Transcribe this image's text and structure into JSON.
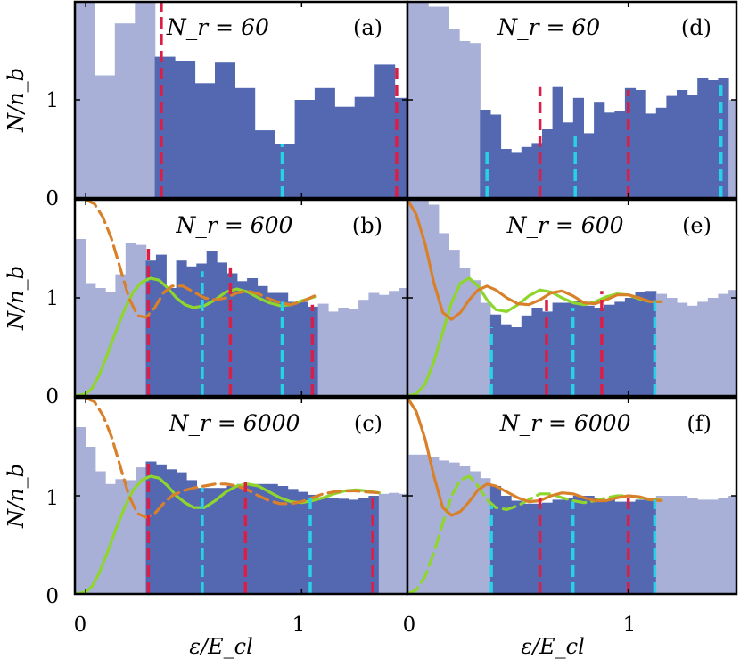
{
  "figure": {
    "ylabel": "N/n_b",
    "xlabel": "ε/E_cl",
    "x_ticks": [
      "0",
      "1",
      "0",
      "1"
    ],
    "y_ticks": {
      "top": [
        "0",
        "1"
      ],
      "mid": [
        "0",
        "1"
      ],
      "bot": [
        "0",
        "1"
      ]
    },
    "panel_titles": [
      "N_r = 60",
      "N_r = 600",
      "N_r = 6000",
      "N_r = 60",
      "N_r = 600",
      "N_r = 6000"
    ],
    "panel_labels": [
      "(a)",
      "(b)",
      "(c)",
      "(d)",
      "(e)",
      "(f)"
    ]
  },
  "colors": {
    "hist_light": "#a9b0d8",
    "hist_dark": "#5468b2",
    "red": "#dc1e46",
    "cyan": "#28d2e6",
    "green": "#8ed62c",
    "orange": "#d8812a"
  },
  "chart_data": [
    {
      "type": "bar",
      "panel": "a",
      "title": "N_r = 60",
      "label": "(a)",
      "xlim": [
        -0.05,
        1.49
      ],
      "ylim": [
        0,
        2.0
      ],
      "bin_width": 0.0925,
      "bin_left_edges": [
        -0.05,
        0.043,
        0.135,
        0.228,
        0.32,
        0.413,
        0.505,
        0.598,
        0.69,
        0.783,
        0.875,
        0.968,
        1.06,
        1.153,
        1.245,
        1.338,
        1.43
      ],
      "values": [
        2.1,
        1.25,
        1.78,
        2.1,
        1.44,
        1.4,
        1.17,
        1.38,
        1.12,
        0.69,
        0.55,
        1.0,
        1.12,
        0.93,
        1.03,
        1.36,
        1.02
      ],
      "highlight_range": [
        0.29,
        1.49
      ],
      "red_lines": [
        {
          "x": 0.35,
          "y": 2.0
        },
        {
          "x": 1.44,
          "y": 1.36
        }
      ],
      "cyan_lines": [
        {
          "x": 0.91,
          "y": 0.55
        }
      ]
    },
    {
      "type": "bar",
      "panel": "b",
      "title": "N_r = 600",
      "label": "(b)",
      "xlim": [
        -0.05,
        1.49
      ],
      "ylim": [
        0,
        2.0
      ],
      "bin_width": 0.0469,
      "values": [
        1.6,
        1.15,
        1.1,
        1.06,
        1.24,
        1.56,
        1.54,
        1.38,
        1.44,
        1.1,
        1.38,
        1.32,
        1.35,
        1.48,
        1.36,
        1.25,
        1.17,
        1.2,
        1.12,
        1.05,
        1.05,
        0.96,
        0.96,
        0.91,
        0.94,
        0.86,
        0.9,
        0.89,
        0.98,
        1.05,
        1.03,
        1.07,
        1.1,
        1.13,
        1.12,
        1.1,
        1.09,
        1.1
      ],
      "highlight_range": [
        0.29,
        1.06
      ],
      "red_lines": [
        {
          "x": 0.29,
          "y": 1.56
        },
        {
          "x": 0.67,
          "y": 1.31
        },
        {
          "x": 1.05,
          "y": 0.93
        }
      ],
      "cyan_lines": [
        {
          "x": 0.54,
          "y": 1.27
        },
        {
          "x": 0.91,
          "y": 0.96
        }
      ],
      "series": [
        {
          "x": [
            -0.05,
            0.0,
            0.03,
            0.06,
            0.1,
            0.14,
            0.18,
            0.22,
            0.26,
            0.3,
            0.34,
            0.38,
            0.42,
            0.46,
            0.5,
            0.55,
            0.6,
            0.65,
            0.7,
            0.75,
            0.8,
            0.85,
            0.9,
            0.95,
            1.0,
            1.06
          ],
          "y": [
            0,
            0.02,
            0.08,
            0.2,
            0.42,
            0.66,
            0.88,
            1.06,
            1.16,
            1.2,
            1.18,
            1.1,
            1.0,
            0.93,
            0.9,
            0.92,
            0.98,
            1.06,
            1.09,
            1.06,
            1.0,
            0.95,
            0.92,
            0.93,
            0.97,
            1.01
          ]
        },
        {
          "x": [
            0.0,
            0.04,
            0.08,
            0.12,
            0.16,
            0.2,
            0.24,
            0.28,
            0.32,
            0.36,
            0.4,
            0.45,
            0.5,
            0.55,
            0.6,
            0.65,
            0.7,
            0.75,
            0.8,
            0.85,
            0.9,
            0.95,
            1.0,
            1.06
          ],
          "y": [
            2.0,
            1.96,
            1.82,
            1.6,
            1.3,
            1.0,
            0.82,
            0.8,
            0.9,
            1.05,
            1.12,
            1.12,
            1.06,
            1.0,
            0.98,
            1.0,
            1.05,
            1.07,
            1.04,
            0.99,
            0.95,
            0.93,
            0.96,
            1.02
          ],
          "dashed": true
        }
      ]
    },
    {
      "type": "bar",
      "panel": "c",
      "title": "N_r = 6000",
      "label": "(c)",
      "xlim": [
        -0.05,
        1.49
      ],
      "ylim": [
        0,
        2.0
      ],
      "bin_width": 0.0469,
      "values": [
        1.7,
        1.5,
        1.25,
        1.12,
        1.17,
        1.16,
        1.29,
        1.35,
        1.32,
        1.27,
        1.24,
        1.16,
        1.08,
        1.08,
        1.08,
        1.1,
        1.12,
        1.12,
        1.12,
        1.12,
        1.1,
        1.07,
        1.04,
        1.01,
        0.98,
        0.98,
        0.97,
        0.96,
        0.98,
        1.0,
        1.02,
        1.03,
        1.02,
        1.0,
        0.99,
        1.0,
        1.0,
        0.99
      ],
      "highlight_range": [
        0.29,
        1.34
      ],
      "red_lines": [
        {
          "x": 0.29,
          "y": 1.38
        },
        {
          "x": 0.74,
          "y": 1.14
        },
        {
          "x": 1.33,
          "y": 1.03
        }
      ],
      "cyan_lines": [
        {
          "x": 0.54,
          "y": 1.08
        },
        {
          "x": 1.04,
          "y": 0.98
        }
      ],
      "series": [
        {
          "x": [
            -0.05,
            0.0,
            0.03,
            0.06,
            0.1,
            0.14,
            0.18,
            0.22,
            0.26,
            0.3,
            0.34,
            0.38,
            0.42,
            0.46,
            0.5,
            0.55,
            0.6,
            0.65,
            0.7,
            0.75,
            0.8,
            0.85,
            0.9,
            0.95,
            1.0,
            1.05,
            1.1,
            1.15,
            1.2,
            1.25,
            1.3,
            1.36
          ],
          "y": [
            0,
            0.02,
            0.08,
            0.2,
            0.42,
            0.66,
            0.88,
            1.06,
            1.16,
            1.2,
            1.18,
            1.1,
            1.0,
            0.93,
            0.88,
            0.88,
            0.95,
            1.04,
            1.1,
            1.12,
            1.1,
            1.04,
            0.98,
            0.94,
            0.93,
            0.95,
            0.98,
            1.02,
            1.05,
            1.06,
            1.05,
            1.03
          ]
        },
        {
          "x": [
            0.0,
            0.04,
            0.08,
            0.12,
            0.16,
            0.2,
            0.24,
            0.28,
            0.32,
            0.36,
            0.4,
            0.45,
            0.5,
            0.55,
            0.6,
            0.65,
            0.7,
            0.75,
            0.8,
            0.85,
            0.9,
            0.95,
            1.0,
            1.05,
            1.1,
            1.15,
            1.2,
            1.25,
            1.3,
            1.36
          ],
          "y": [
            2.0,
            1.96,
            1.82,
            1.6,
            1.3,
            1.0,
            0.82,
            0.78,
            0.82,
            0.92,
            1.0,
            1.05,
            1.08,
            1.1,
            1.12,
            1.12,
            1.1,
            1.06,
            1.0,
            0.95,
            0.92,
            0.92,
            0.94,
            0.98,
            1.02,
            1.04,
            1.05,
            1.05,
            1.04,
            1.03
          ],
          "dashed": true
        }
      ]
    },
    {
      "type": "bar",
      "panel": "d",
      "title": "N_r = 60",
      "label": "(d)",
      "xlim": [
        0.0,
        1.49
      ],
      "ylim": [
        0,
        2.0
      ],
      "bin_width": 0.0469,
      "values": [
        2.1,
        2.1,
        1.95,
        1.95,
        1.72,
        1.6,
        1.58,
        0.9,
        0.85,
        0.5,
        0.46,
        0.52,
        0.56,
        0.7,
        1.13,
        0.77,
        1.02,
        0.66,
        0.98,
        0.87,
        0.89,
        1.12,
        1.1,
        0.86,
        0.92,
        1.04,
        1.1,
        1.05,
        1.22,
        1.2,
        1.22,
        1.0,
        1.5,
        1.38,
        1.1
      ],
      "highlight_range": [
        0.32,
        1.46
      ],
      "red_lines": [
        {
          "x": 0.6,
          "y": 1.13
        },
        {
          "x": 1.0,
          "y": 1.1
        }
      ],
      "cyan_lines": [
        {
          "x": 0.36,
          "y": 0.5
        },
        {
          "x": 0.76,
          "y": 0.66
        },
        {
          "x": 1.42,
          "y": 1.2
        }
      ]
    },
    {
      "type": "bar",
      "panel": "e",
      "title": "N_r = 600",
      "label": "(e)",
      "xlim": [
        0.0,
        1.49
      ],
      "ylim": [
        0,
        2.0
      ],
      "bin_width": 0.0469,
      "values": [
        2.1,
        2.1,
        1.95,
        1.66,
        1.49,
        1.3,
        1.18,
        0.95,
        0.83,
        0.73,
        0.7,
        0.82,
        0.9,
        0.86,
        0.95,
        0.95,
        0.97,
        0.92,
        0.9,
        0.93,
        0.96,
        1.0,
        1.06,
        1.07,
        1.04,
        1.0,
        0.95,
        0.92,
        0.96,
        1.0,
        1.04,
        1.08,
        1.12,
        1.18,
        1.24,
        1.2
      ],
      "highlight_range": [
        0.36,
        1.13
      ],
      "red_lines": [
        {
          "x": 0.63,
          "y": 1.0
        },
        {
          "x": 0.88,
          "y": 1.07
        }
      ],
      "cyan_lines": [
        {
          "x": 0.38,
          "y": 0.7
        },
        {
          "x": 0.75,
          "y": 0.9
        },
        {
          "x": 1.12,
          "y": 0.96
        }
      ],
      "series": [
        {
          "x": [
            0.0,
            0.04,
            0.08,
            0.12,
            0.16,
            0.2,
            0.24,
            0.28,
            0.32,
            0.36,
            0.4,
            0.45,
            0.5,
            0.55,
            0.6,
            0.65,
            0.7,
            0.75,
            0.8,
            0.85,
            0.9,
            0.95,
            1.0,
            1.05,
            1.1,
            1.15
          ],
          "y": [
            0,
            0.02,
            0.12,
            0.35,
            0.65,
            0.95,
            1.15,
            1.2,
            1.12,
            0.98,
            0.88,
            0.86,
            0.93,
            1.02,
            1.08,
            1.06,
            1.0,
            0.95,
            0.93,
            0.96,
            1.01,
            1.04,
            1.03,
            0.99,
            0.96,
            0.96
          ]
        },
        {
          "x": [
            0.0,
            0.04,
            0.08,
            0.12,
            0.16,
            0.2,
            0.24,
            0.28,
            0.32,
            0.36,
            0.4,
            0.45,
            0.5,
            0.55,
            0.6,
            0.65,
            0.7,
            0.75,
            0.8,
            0.85,
            0.9,
            0.95,
            1.0,
            1.05,
            1.1,
            1.15
          ],
          "y": [
            2.0,
            1.85,
            1.55,
            1.15,
            0.85,
            0.78,
            0.85,
            0.98,
            1.08,
            1.12,
            1.08,
            1.0,
            0.94,
            0.93,
            0.98,
            1.05,
            1.07,
            1.02,
            0.95,
            0.94,
            0.98,
            1.03,
            1.03,
            1.0,
            0.96,
            0.96
          ]
        }
      ]
    },
    {
      "type": "bar",
      "panel": "f",
      "title": "N_r = 6000",
      "label": "(f)",
      "xlim": [
        0.0,
        1.49
      ],
      "ylim": [
        0,
        2.0
      ],
      "bin_width": 0.0469,
      "values": [
        1.42,
        1.42,
        1.4,
        1.36,
        1.34,
        1.3,
        1.25,
        1.18,
        1.1,
        1.0,
        0.95,
        0.92,
        0.92,
        0.93,
        0.96,
        0.98,
        1.0,
        1.0,
        0.98,
        0.96,
        0.94,
        0.94,
        0.96,
        0.98,
        1.0,
        1.0,
        1.0,
        0.98,
        0.96,
        0.96,
        0.98,
        1.0,
        1.02,
        1.04,
        1.06,
        1.08
      ],
      "highlight_range": [
        0.36,
        1.13
      ],
      "red_lines": [
        {
          "x": 0.6,
          "y": 1.0
        },
        {
          "x": 1.0,
          "y": 1.0
        }
      ],
      "cyan_lines": [
        {
          "x": 0.38,
          "y": 0.9
        },
        {
          "x": 0.75,
          "y": 0.94
        },
        {
          "x": 1.12,
          "y": 0.96
        }
      ],
      "series": [
        {
          "x": [
            0.0,
            0.04,
            0.08,
            0.12,
            0.16,
            0.2,
            0.24,
            0.28,
            0.32,
            0.36,
            0.4,
            0.45,
            0.5,
            0.55,
            0.6,
            0.65,
            0.7,
            0.75,
            0.8,
            0.85,
            0.9,
            0.95,
            1.0,
            1.05,
            1.1,
            1.15
          ],
          "y": [
            0,
            0.04,
            0.18,
            0.42,
            0.72,
            1.0,
            1.16,
            1.2,
            1.1,
            0.96,
            0.88,
            0.86,
            0.9,
            0.96,
            1.02,
            1.02,
            0.98,
            0.95,
            0.93,
            0.95,
            0.98,
            1.0,
            1.0,
            0.98,
            0.96,
            0.96
          ],
          "dashed": true
        },
        {
          "x": [
            0.0,
            0.04,
            0.08,
            0.12,
            0.16,
            0.2,
            0.24,
            0.28,
            0.32,
            0.36,
            0.4,
            0.45,
            0.5,
            0.55,
            0.6,
            0.65,
            0.7,
            0.75,
            0.8,
            0.85,
            0.9,
            0.95,
            1.0,
            1.05,
            1.1,
            1.15
          ],
          "y": [
            2.0,
            1.86,
            1.58,
            1.2,
            0.88,
            0.8,
            0.84,
            0.94,
            1.06,
            1.12,
            1.1,
            1.04,
            0.98,
            0.94,
            0.95,
            1.0,
            1.03,
            1.02,
            0.98,
            0.95,
            0.95,
            0.98,
            1.0,
            0.99,
            0.96,
            0.95
          ]
        }
      ]
    }
  ]
}
